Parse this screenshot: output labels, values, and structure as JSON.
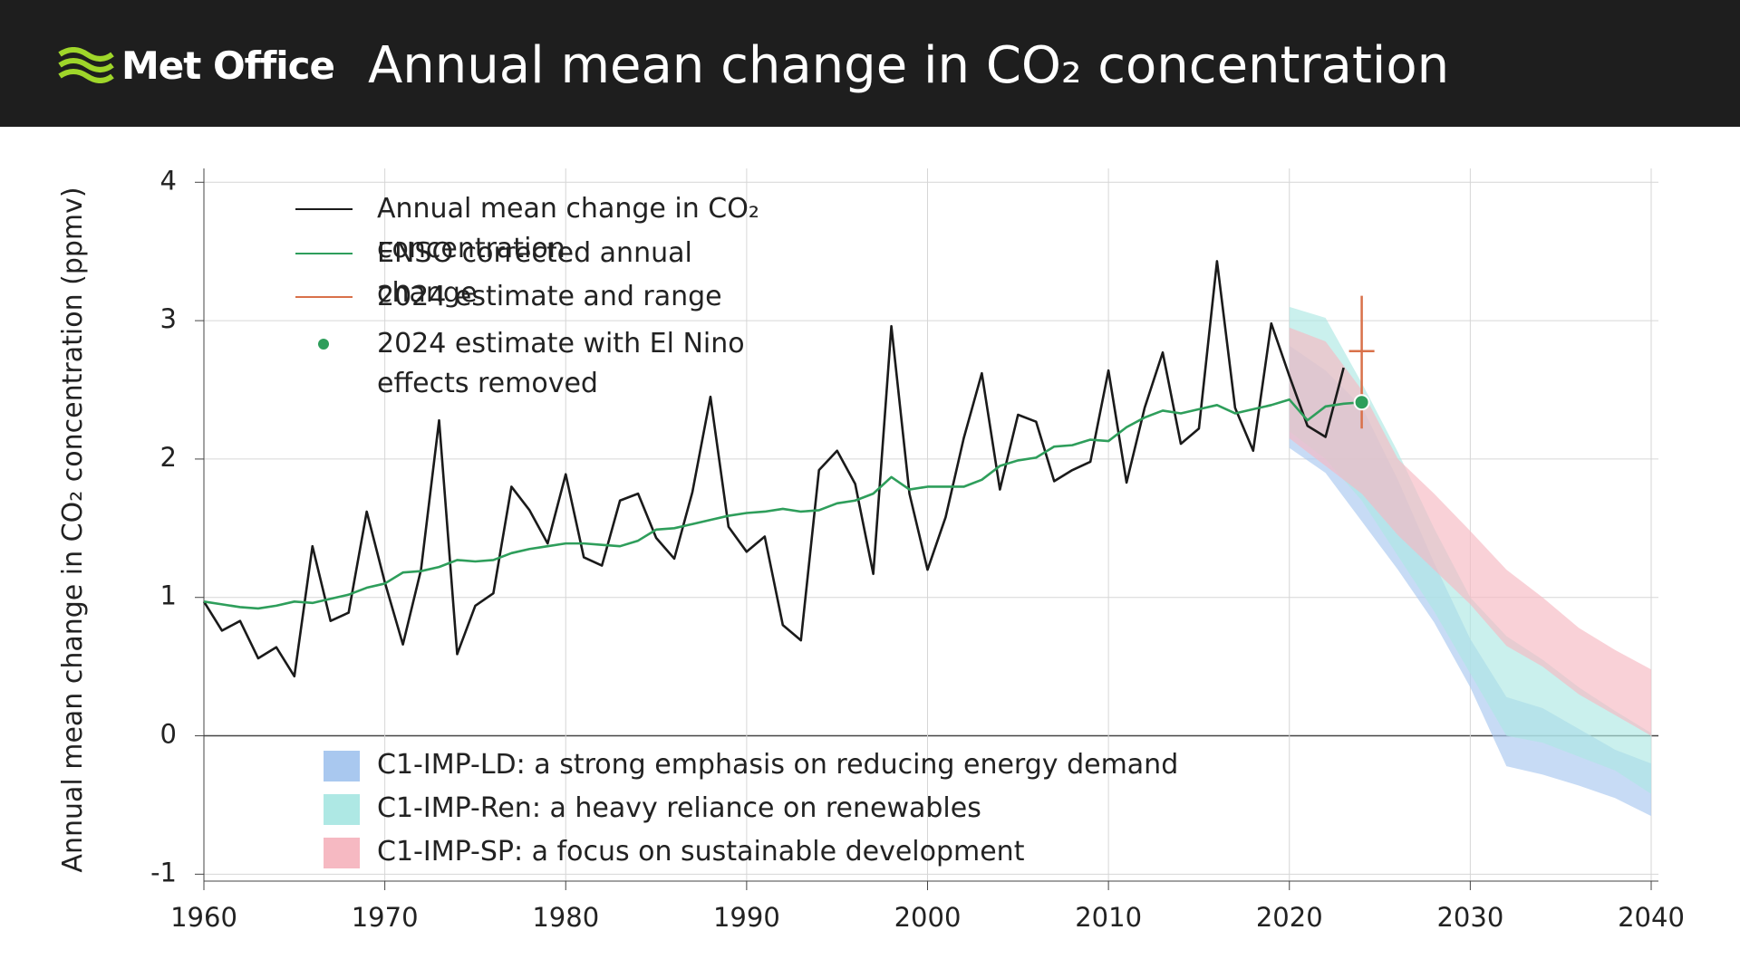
{
  "brand": "Met Office",
  "chart_data": {
    "type": "line",
    "title": "Annual mean change in CO₂ concentration",
    "y_label": "Annual mean change in CO₂ concentration (ppmv)",
    "xlim": [
      1960,
      2040
    ],
    "ylim": [
      -1.05,
      4.1
    ],
    "xticks": [
      1960,
      1970,
      1980,
      1990,
      2000,
      2010,
      2020,
      2030,
      2040
    ],
    "yticks": [
      -1,
      0,
      1,
      2,
      3,
      4
    ],
    "grid": true,
    "x": [
      1960,
      1961,
      1962,
      1963,
      1964,
      1965,
      1966,
      1967,
      1968,
      1969,
      1970,
      1971,
      1972,
      1973,
      1974,
      1975,
      1976,
      1977,
      1978,
      1979,
      1980,
      1981,
      1982,
      1983,
      1984,
      1985,
      1986,
      1987,
      1988,
      1989,
      1990,
      1991,
      1992,
      1993,
      1994,
      1995,
      1996,
      1997,
      1998,
      1999,
      2000,
      2001,
      2002,
      2003,
      2004,
      2005,
      2006,
      2007,
      2008,
      2009,
      2010,
      2011,
      2012,
      2013,
      2014,
      2015,
      2016,
      2017,
      2018,
      2019,
      2020,
      2021,
      2022,
      2023,
      2024
    ],
    "series": [
      {
        "name": "Annual mean change in CO₂ concentration",
        "color": "#1a1a1a",
        "values": [
          0.97,
          0.76,
          0.83,
          0.56,
          0.64,
          0.43,
          1.37,
          0.83,
          0.89,
          1.62,
          1.11,
          0.66,
          1.2,
          2.28,
          0.59,
          0.94,
          1.03,
          1.8,
          1.63,
          1.39,
          1.89,
          1.29,
          1.23,
          1.7,
          1.75,
          1.43,
          1.28,
          1.76,
          2.45,
          1.51,
          1.33,
          1.44,
          0.8,
          0.69,
          1.92,
          2.06,
          1.82,
          1.17,
          2.96,
          1.75,
          1.2,
          1.58,
          2.15,
          2.62,
          1.78,
          2.32,
          2.27,
          1.84,
          1.92,
          1.98,
          2.64,
          1.83,
          2.37,
          2.77,
          2.11,
          2.22,
          3.43,
          2.37,
          2.06,
          2.98,
          2.6,
          2.24,
          2.16,
          2.66,
          null
        ]
      },
      {
        "name": "ENSO corrected annual change",
        "color": "#2e9e5b",
        "values": [
          0.97,
          0.95,
          0.93,
          0.92,
          0.94,
          0.97,
          0.96,
          0.99,
          1.02,
          1.07,
          1.1,
          1.18,
          1.19,
          1.22,
          1.27,
          1.26,
          1.27,
          1.32,
          1.35,
          1.37,
          1.39,
          1.39,
          1.38,
          1.37,
          1.41,
          1.49,
          1.5,
          1.53,
          1.56,
          1.59,
          1.61,
          1.62,
          1.64,
          1.62,
          1.63,
          1.68,
          1.7,
          1.75,
          1.87,
          1.78,
          1.8,
          1.8,
          1.8,
          1.85,
          1.95,
          1.99,
          2.01,
          2.09,
          2.1,
          2.14,
          2.13,
          2.23,
          2.3,
          2.35,
          2.33,
          2.36,
          2.39,
          2.33,
          2.36,
          2.39,
          2.43,
          2.28,
          2.38,
          2.4,
          2.41
        ]
      }
    ],
    "estimate": {
      "name": "2024 estimate and range",
      "color": "#d9714a",
      "x": 2024,
      "value": 2.78,
      "range": [
        2.22,
        3.18
      ]
    },
    "el_nino_removed": {
      "name": "2024 estimate with El Nino effects removed",
      "color": "#2e9e5b",
      "x": 2024,
      "value": 2.41
    },
    "scenarios": [
      {
        "name": "C1-IMP-LD: a strong emphasis on reducing energy demand",
        "color": "#a9c8ef",
        "x": [
          2020,
          2022,
          2024,
          2026,
          2028,
          2030,
          2032,
          2034,
          2036,
          2038,
          2040
        ],
        "lower": [
          2.08,
          1.9,
          1.55,
          1.2,
          0.82,
          0.35,
          -0.22,
          -0.28,
          -0.36,
          -0.45,
          -0.58
        ],
        "upper": [
          2.82,
          2.64,
          2.38,
          1.85,
          1.25,
          0.7,
          0.28,
          0.2,
          0.05,
          -0.1,
          -0.2
        ]
      },
      {
        "name": "C1-IMP-Ren: a heavy reliance on renewables",
        "color": "#aee8e4",
        "x": [
          2020,
          2022,
          2024,
          2026,
          2028,
          2030,
          2032,
          2034,
          2036,
          2038,
          2040
        ],
        "lower": [
          2.2,
          2.0,
          1.7,
          1.3,
          0.9,
          0.45,
          0.0,
          -0.05,
          -0.15,
          -0.25,
          -0.42
        ],
        "upper": [
          3.1,
          3.02,
          2.55,
          2.05,
          1.5,
          1.0,
          0.72,
          0.55,
          0.35,
          0.18,
          0.02
        ]
      },
      {
        "name": "C1-IMP-SP: a focus on sustainable development",
        "color": "#f6b9c2",
        "x": [
          2020,
          2022,
          2024,
          2026,
          2028,
          2030,
          2032,
          2034,
          2036,
          2038,
          2040
        ],
        "lower": [
          2.15,
          1.95,
          1.75,
          1.45,
          1.2,
          0.95,
          0.65,
          0.5,
          0.3,
          0.15,
          0.0
        ],
        "upper": [
          2.95,
          2.85,
          2.5,
          2.0,
          1.75,
          1.48,
          1.2,
          1.0,
          0.78,
          0.62,
          0.48
        ]
      }
    ]
  }
}
